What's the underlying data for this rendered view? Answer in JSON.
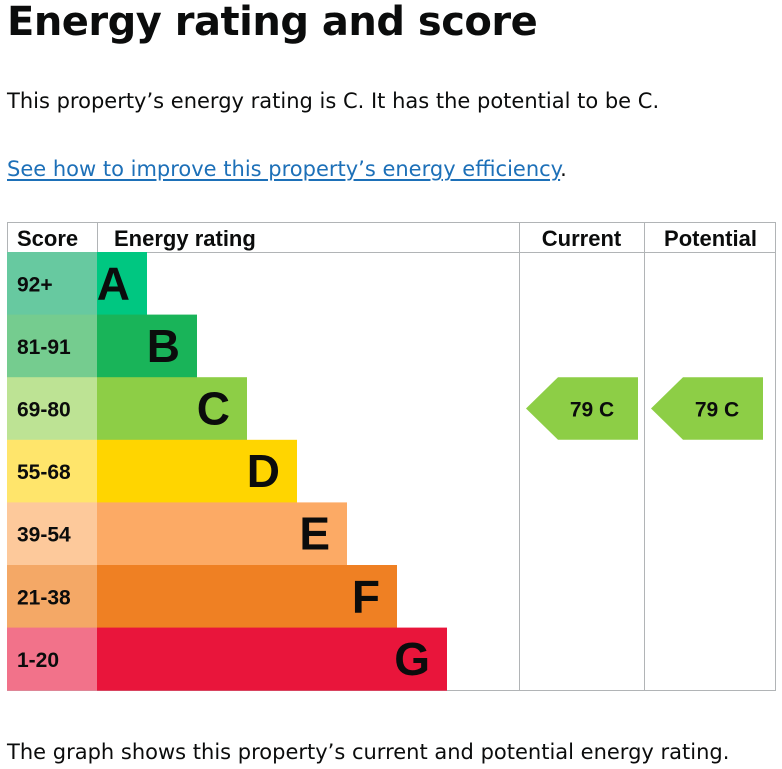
{
  "page": {
    "title": "Energy rating and score",
    "summary": "This property’s energy rating is C. It has the potential to be C.",
    "improve_link": "See how to improve this property’s energy efficiency",
    "improve_suffix": ".",
    "footer": "The graph shows this property’s current and potential energy rating."
  },
  "chart_data": {
    "type": "bar",
    "columns": [
      "Score",
      "Energy rating",
      "Current",
      "Potential"
    ],
    "bands": [
      {
        "letter": "A",
        "score": "92+",
        "band_color": "#00c781",
        "score_color": "#67c9a0"
      },
      {
        "letter": "B",
        "score": "81-91",
        "band_color": "#19b459",
        "score_color": "#75cc8f"
      },
      {
        "letter": "C",
        "score": "69-80",
        "band_color": "#8dce46",
        "score_color": "#bde394"
      },
      {
        "letter": "D",
        "score": "55-68",
        "band_color": "#ffd500",
        "score_color": "#ffe56b"
      },
      {
        "letter": "E",
        "score": "39-54",
        "band_color": "#fcaa65",
        "score_color": "#fdc99b"
      },
      {
        "letter": "F",
        "score": "21-38",
        "band_color": "#ef8023",
        "score_color": "#f4a866"
      },
      {
        "letter": "G",
        "score": "1-20",
        "band_color": "#e9153b",
        "score_color": "#f2728a"
      }
    ],
    "current": {
      "score": 79,
      "letter": "C",
      "label": "79  C"
    },
    "potential": {
      "score": 79,
      "letter": "C",
      "label": "79  C"
    }
  }
}
